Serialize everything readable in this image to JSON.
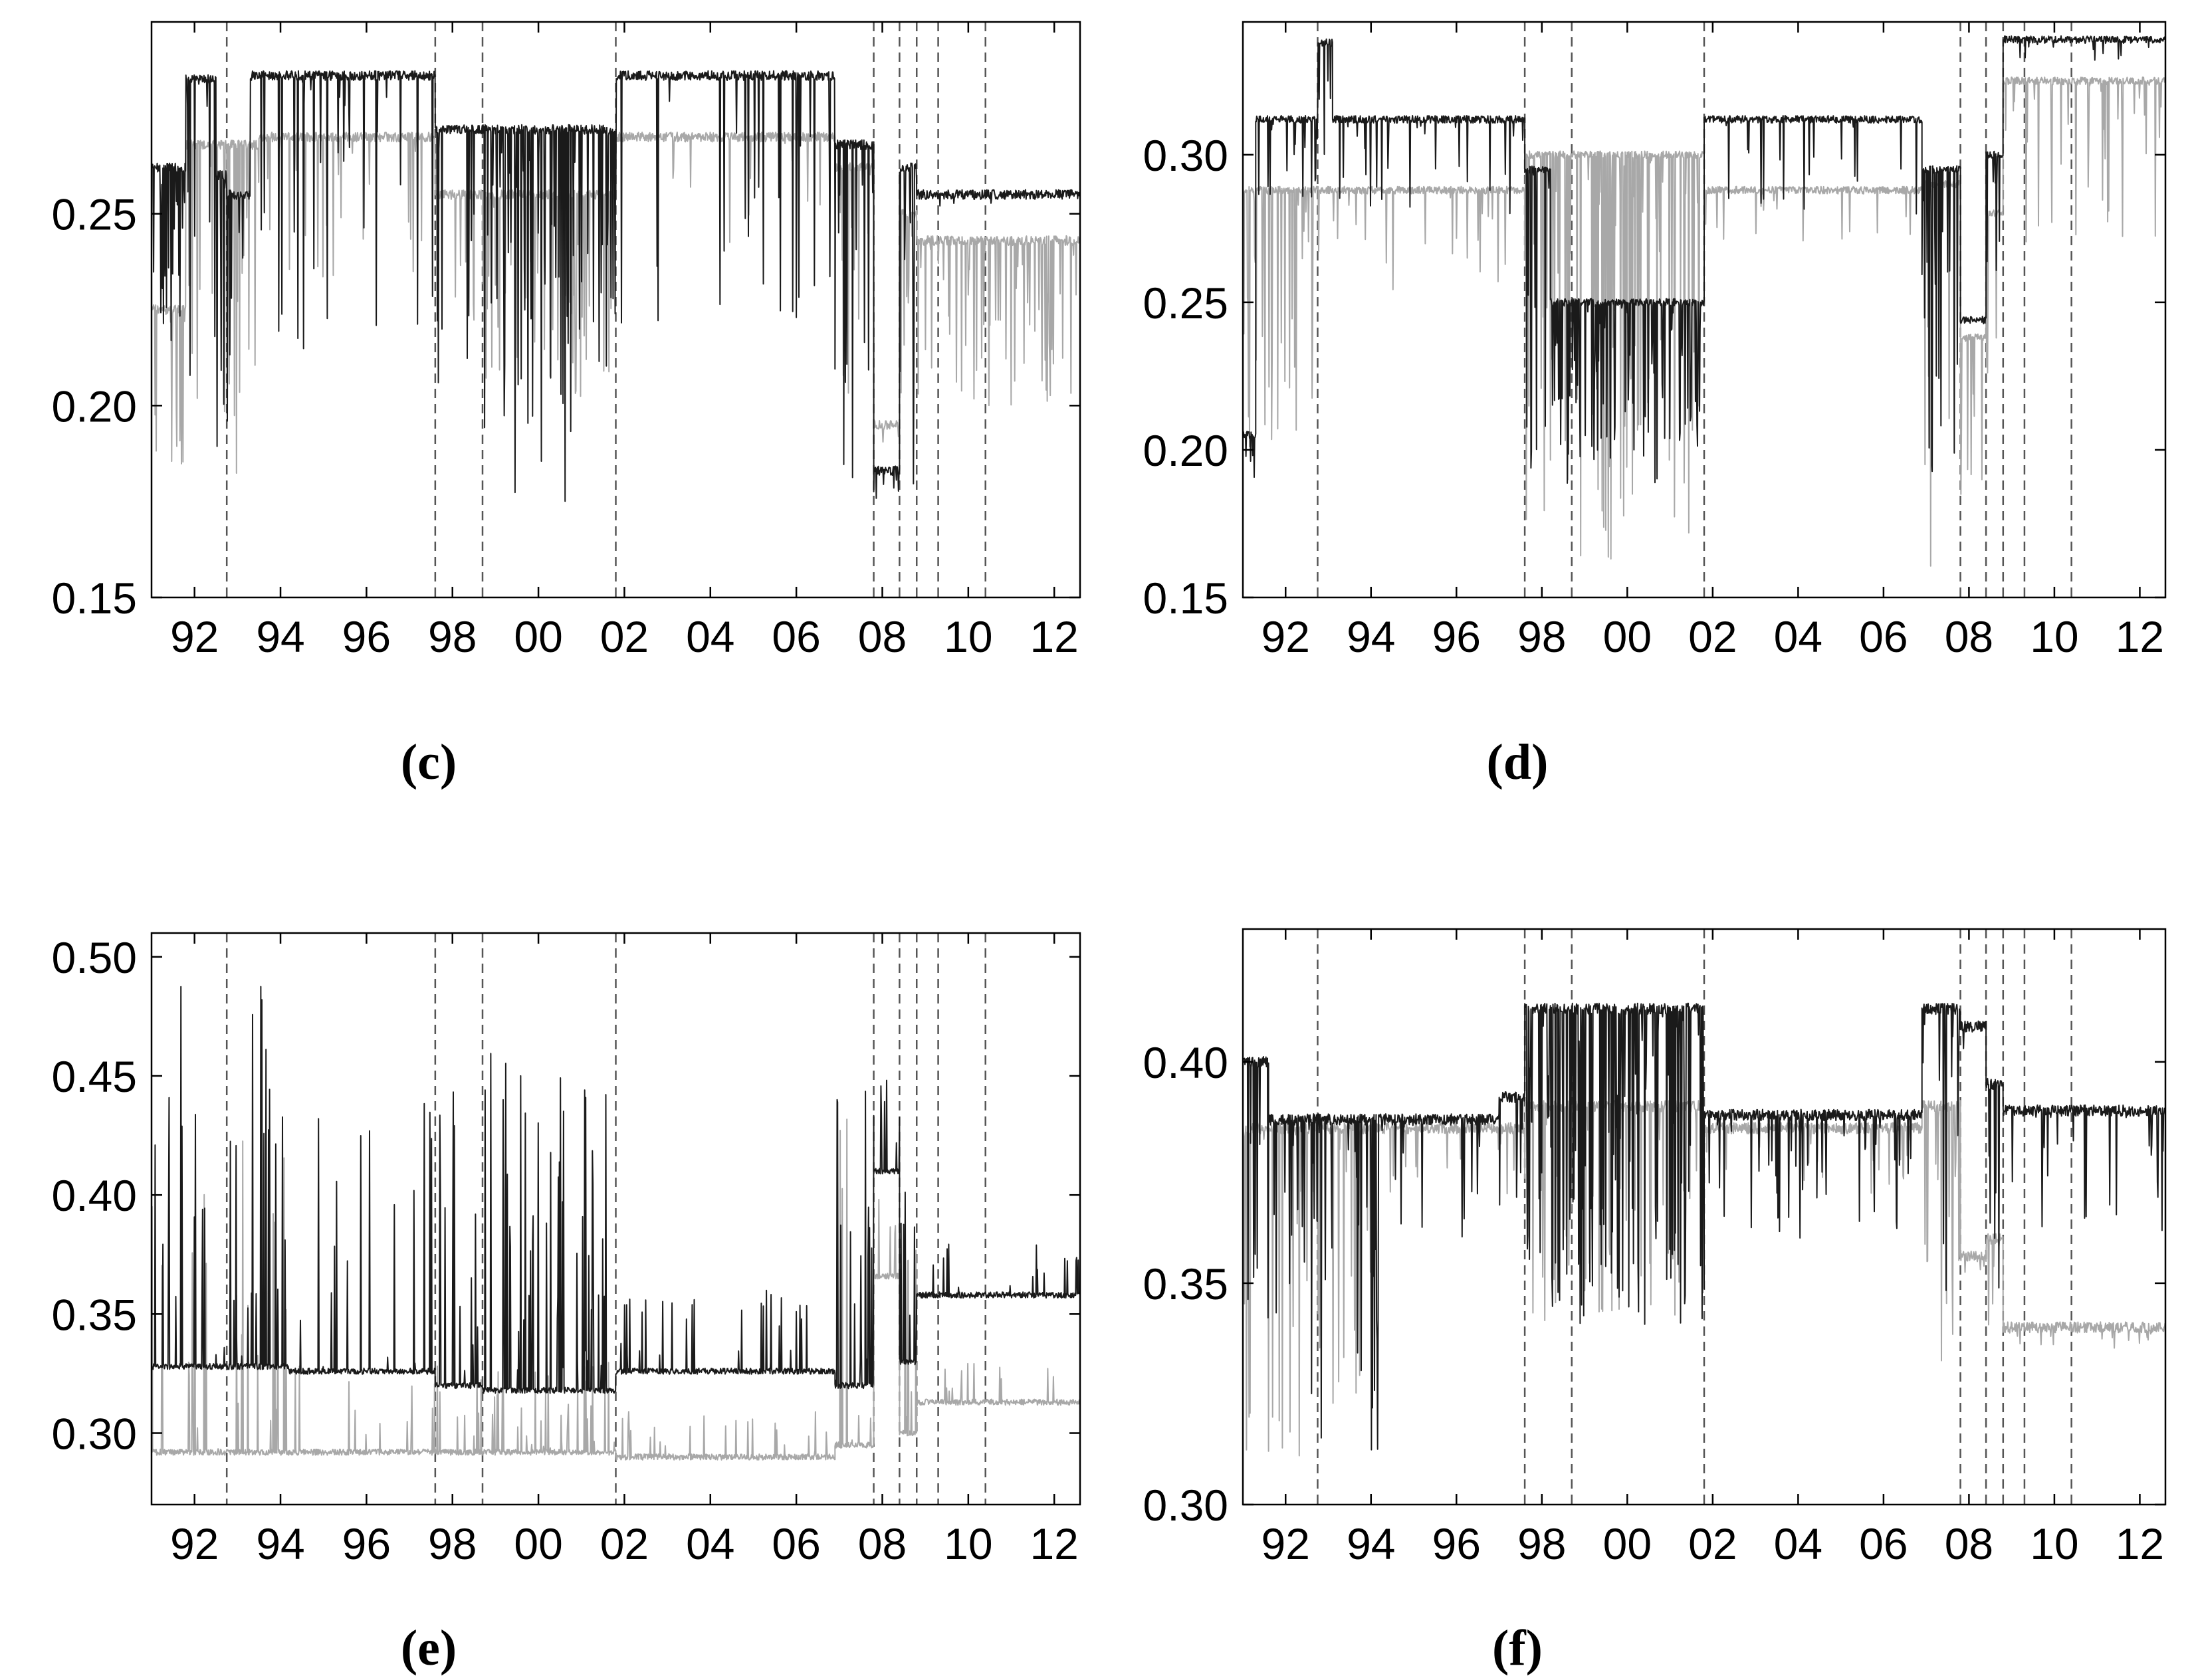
{
  "chart_data": [
    {
      "panel": "(c)",
      "type": "line",
      "xlim": [
        1991.0,
        2012.6
      ],
      "ylim": [
        0.15,
        0.3
      ],
      "y_ticks": [
        0.15,
        0.2,
        0.25
      ],
      "y_tick_labels": [
        "0.15",
        "0.20",
        "0.25"
      ],
      "x_ticks": [
        1992,
        1994,
        1996,
        1998,
        2000,
        2002,
        2004,
        2006,
        2008,
        2010,
        2012
      ],
      "x_tick_labels": [
        "92",
        "94",
        "96",
        "98",
        "00",
        "02",
        "04",
        "06",
        "08",
        "10",
        "12"
      ],
      "break_dates": [
        1992.75,
        1997.6,
        1998.7,
        2001.8,
        2007.8,
        2008.4,
        2008.8,
        2009.3,
        2010.4
      ],
      "series": [
        {
          "color": "#1a1a1a",
          "segments": [
            {
              "start": 1991.0,
              "end": 1991.8,
              "level": 0.262,
              "dip": 0.21,
              "vol": 0.8
            },
            {
              "start": 1991.8,
              "end": 1992.5,
              "level": 0.285,
              "dip": 0.19,
              "vol": 0.5
            },
            {
              "start": 1992.5,
              "end": 1992.75,
              "level": 0.26,
              "dip": 0.185,
              "vol": 0.6
            },
            {
              "start": 1992.75,
              "end": 1993.3,
              "level": 0.255,
              "dip": 0.19,
              "vol": 0.6
            },
            {
              "start": 1993.3,
              "end": 1997.6,
              "level": 0.286,
              "dip": 0.21,
              "vol": 0.25
            },
            {
              "start": 1997.6,
              "end": 1998.7,
              "level": 0.272,
              "dip": 0.2,
              "vol": 0.45
            },
            {
              "start": 1998.7,
              "end": 2000.8,
              "level": 0.272,
              "dip": 0.175,
              "vol": 0.75
            },
            {
              "start": 2000.8,
              "end": 2001.8,
              "level": 0.272,
              "dip": 0.21,
              "vol": 0.35
            },
            {
              "start": 2001.8,
              "end": 2006.9,
              "level": 0.286,
              "dip": 0.22,
              "vol": 0.2
            },
            {
              "start": 2006.9,
              "end": 2007.8,
              "level": 0.268,
              "dip": 0.175,
              "vol": 0.6
            },
            {
              "start": 2007.8,
              "end": 2008.4,
              "level": 0.183,
              "dip": 0.175,
              "vol": 0.3
            },
            {
              "start": 2008.4,
              "end": 2008.8,
              "level": 0.262,
              "dip": 0.16,
              "vol": 0.7
            },
            {
              "start": 2008.8,
              "end": 2012.6,
              "level": 0.255,
              "dip": 0.252,
              "vol": 0.05
            }
          ]
        },
        {
          "color": "#a8a8a8",
          "segments": [
            {
              "start": 1991.0,
              "end": 1991.8,
              "level": 0.225,
              "dip": 0.18,
              "vol": 0.5
            },
            {
              "start": 1991.8,
              "end": 1993.5,
              "level": 0.268,
              "dip": 0.18,
              "vol": 0.4
            },
            {
              "start": 1993.5,
              "end": 1997.6,
              "level": 0.27,
              "dip": 0.23,
              "vol": 0.15
            },
            {
              "start": 1997.6,
              "end": 1998.7,
              "level": 0.255,
              "dip": 0.21,
              "vol": 0.3
            },
            {
              "start": 1998.7,
              "end": 2001.8,
              "level": 0.255,
              "dip": 0.2,
              "vol": 0.4
            },
            {
              "start": 2001.8,
              "end": 2006.9,
              "level": 0.27,
              "dip": 0.24,
              "vol": 0.12
            },
            {
              "start": 2006.9,
              "end": 2007.8,
              "level": 0.262,
              "dip": 0.2,
              "vol": 0.4
            },
            {
              "start": 2007.8,
              "end": 2008.4,
              "level": 0.195,
              "dip": 0.185,
              "vol": 0.3
            },
            {
              "start": 2008.4,
              "end": 2008.8,
              "level": 0.25,
              "dip": 0.2,
              "vol": 0.5
            },
            {
              "start": 2008.8,
              "end": 2012.6,
              "level": 0.243,
              "dip": 0.2,
              "vol": 0.5
            }
          ]
        }
      ]
    },
    {
      "panel": "(d)",
      "type": "line",
      "xlim": [
        1991.0,
        2012.6
      ],
      "ylim": [
        0.15,
        0.345
      ],
      "y_ticks": [
        0.15,
        0.2,
        0.25,
        0.3
      ],
      "y_tick_labels": [
        "0.15",
        "0.20",
        "0.25",
        "0.30"
      ],
      "x_ticks": [
        1992,
        1994,
        1996,
        1998,
        2000,
        2002,
        2004,
        2006,
        2008,
        2010,
        2012
      ],
      "x_tick_labels": [
        "92",
        "94",
        "96",
        "98",
        "00",
        "02",
        "04",
        "06",
        "08",
        "10",
        "12"
      ],
      "break_dates": [
        1992.75,
        1997.6,
        1998.7,
        2001.8,
        2007.8,
        2008.4,
        2008.8,
        2009.3,
        2010.4
      ],
      "series": [
        {
          "color": "#1a1a1a",
          "segments": [
            {
              "start": 1991.0,
              "end": 1991.3,
              "level": 0.205,
              "dip": 0.19,
              "vol": 0.5
            },
            {
              "start": 1991.3,
              "end": 1992.75,
              "level": 0.312,
              "dip": 0.285,
              "vol": 0.35
            },
            {
              "start": 1992.75,
              "end": 1993.1,
              "level": 0.338,
              "dip": 0.3,
              "vol": 0.4
            },
            {
              "start": 1993.1,
              "end": 1997.6,
              "level": 0.312,
              "dip": 0.28,
              "vol": 0.2
            },
            {
              "start": 1997.6,
              "end": 1998.2,
              "level": 0.295,
              "dip": 0.19,
              "vol": 0.6
            },
            {
              "start": 1998.2,
              "end": 2001.8,
              "level": 0.25,
              "dip": 0.187,
              "vol": 0.8
            },
            {
              "start": 2001.8,
              "end": 2006.9,
              "level": 0.312,
              "dip": 0.28,
              "vol": 0.15
            },
            {
              "start": 2006.9,
              "end": 2007.8,
              "level": 0.295,
              "dip": 0.19,
              "vol": 0.7
            },
            {
              "start": 2007.8,
              "end": 2008.4,
              "level": 0.244,
              "dip": 0.24,
              "vol": 0.1
            },
            {
              "start": 2008.4,
              "end": 2008.8,
              "level": 0.3,
              "dip": 0.25,
              "vol": 0.5
            },
            {
              "start": 2008.8,
              "end": 2012.6,
              "level": 0.339,
              "dip": 0.33,
              "vol": 0.15
            }
          ]
        },
        {
          "color": "#a8a8a8",
          "segments": [
            {
              "start": 1991.0,
              "end": 1992.75,
              "level": 0.288,
              "dip": 0.2,
              "vol": 0.45
            },
            {
              "start": 1992.75,
              "end": 1997.6,
              "level": 0.288,
              "dip": 0.25,
              "vol": 0.2
            },
            {
              "start": 1997.6,
              "end": 2001.8,
              "level": 0.3,
              "dip": 0.16,
              "vol": 0.7
            },
            {
              "start": 2001.8,
              "end": 2006.9,
              "level": 0.288,
              "dip": 0.27,
              "vol": 0.1
            },
            {
              "start": 2006.9,
              "end": 2007.8,
              "level": 0.29,
              "dip": 0.16,
              "vol": 0.6
            },
            {
              "start": 2007.8,
              "end": 2008.4,
              "level": 0.238,
              "dip": 0.18,
              "vol": 0.4
            },
            {
              "start": 2008.4,
              "end": 2008.8,
              "level": 0.28,
              "dip": 0.22,
              "vol": 0.4
            },
            {
              "start": 2008.8,
              "end": 2012.6,
              "level": 0.325,
              "dip": 0.27,
              "vol": 0.3
            }
          ]
        }
      ]
    },
    {
      "panel": "(e)",
      "type": "line",
      "xlim": [
        1991.0,
        2012.6
      ],
      "ylim": [
        0.27,
        0.51
      ],
      "y_ticks": [
        0.3,
        0.35,
        0.4,
        0.45,
        0.5
      ],
      "y_tick_labels": [
        "0.30",
        "0.35",
        "0.40",
        "0.45",
        "0.50"
      ],
      "x_ticks": [
        1992,
        1994,
        1996,
        1998,
        2000,
        2002,
        2004,
        2006,
        2008,
        2010,
        2012
      ],
      "x_tick_labels": [
        "92",
        "94",
        "96",
        "98",
        "00",
        "02",
        "04",
        "06",
        "08",
        "10",
        "12"
      ],
      "break_dates": [
        1992.75,
        1997.6,
        1998.7,
        2001.8,
        2007.8,
        2008.4,
        2008.8,
        2009.3,
        2010.4
      ],
      "series": [
        {
          "color": "#1a1a1a",
          "segments": [
            {
              "start": 1991.0,
              "end": 1992.75,
              "level": 0.328,
              "peak": 0.49,
              "vol": 0.45
            },
            {
              "start": 1992.75,
              "end": 1994.2,
              "level": 0.328,
              "peak": 0.49,
              "vol": 0.55
            },
            {
              "start": 1994.2,
              "end": 1997.6,
              "level": 0.326,
              "peak": 0.44,
              "vol": 0.2
            },
            {
              "start": 1997.6,
              "end": 1998.7,
              "level": 0.32,
              "peak": 0.45,
              "vol": 0.45
            },
            {
              "start": 1998.7,
              "end": 2001.8,
              "level": 0.318,
              "peak": 0.46,
              "vol": 0.6
            },
            {
              "start": 2001.8,
              "end": 2006.9,
              "level": 0.326,
              "peak": 0.36,
              "vol": 0.25
            },
            {
              "start": 2006.9,
              "end": 2007.8,
              "level": 0.32,
              "peak": 0.46,
              "vol": 0.6
            },
            {
              "start": 2007.8,
              "end": 2008.4,
              "level": 0.41,
              "peak": 0.45,
              "vol": 0.2
            },
            {
              "start": 2008.4,
              "end": 2008.8,
              "level": 0.33,
              "peak": 0.45,
              "vol": 0.5
            },
            {
              "start": 2008.8,
              "end": 2012.6,
              "level": 0.358,
              "peak": 0.38,
              "vol": 0.12
            }
          ]
        },
        {
          "color": "#a8a8a8",
          "segments": [
            {
              "start": 1991.0,
              "end": 1992.75,
              "level": 0.292,
              "peak": 0.42,
              "vol": 0.3
            },
            {
              "start": 1992.75,
              "end": 1994.2,
              "level": 0.292,
              "peak": 0.45,
              "vol": 0.35
            },
            {
              "start": 1994.2,
              "end": 1997.6,
              "level": 0.292,
              "peak": 0.33,
              "vol": 0.15
            },
            {
              "start": 1997.6,
              "end": 2001.8,
              "level": 0.292,
              "peak": 0.33,
              "vol": 0.3
            },
            {
              "start": 2001.8,
              "end": 2006.9,
              "level": 0.29,
              "peak": 0.31,
              "vol": 0.25
            },
            {
              "start": 2006.9,
              "end": 2007.8,
              "level": 0.295,
              "peak": 0.45,
              "vol": 0.4
            },
            {
              "start": 2007.8,
              "end": 2008.4,
              "level": 0.366,
              "peak": 0.4,
              "vol": 0.2
            },
            {
              "start": 2008.4,
              "end": 2008.8,
              "level": 0.3,
              "peak": 0.4,
              "vol": 0.4
            },
            {
              "start": 2008.8,
              "end": 2012.6,
              "level": 0.313,
              "peak": 0.33,
              "vol": 0.15
            }
          ]
        }
      ]
    },
    {
      "panel": "(f)",
      "type": "line",
      "xlim": [
        1991.0,
        2012.6
      ],
      "ylim": [
        0.3,
        0.43
      ],
      "y_ticks": [
        0.3,
        0.35,
        0.4
      ],
      "y_tick_labels": [
        "0.30",
        "0.35",
        "0.40"
      ],
      "x_ticks": [
        1992,
        1994,
        1996,
        1998,
        2000,
        2002,
        2004,
        2006,
        2008,
        2010,
        2012
      ],
      "x_tick_labels": [
        "92",
        "94",
        "96",
        "98",
        "00",
        "02",
        "04",
        "06",
        "08",
        "10",
        "12"
      ],
      "break_dates": [
        1992.75,
        1997.6,
        1998.7,
        2001.8,
        2007.8,
        2008.4,
        2008.8,
        2009.3,
        2010.4
      ],
      "series": [
        {
          "color": "#1a1a1a",
          "segments": [
            {
              "start": 1991.0,
              "end": 1991.6,
              "level": 0.4,
              "dip": 0.32,
              "vol": 0.6
            },
            {
              "start": 1991.6,
              "end": 1992.75,
              "level": 0.387,
              "dip": 0.32,
              "vol": 0.4
            },
            {
              "start": 1992.75,
              "end": 1994.2,
              "level": 0.387,
              "dip": 0.31,
              "vol": 0.55
            },
            {
              "start": 1994.2,
              "end": 1997.0,
              "level": 0.387,
              "dip": 0.36,
              "vol": 0.2
            },
            {
              "start": 1997.0,
              "end": 1997.6,
              "level": 0.392,
              "dip": 0.36,
              "vol": 0.4
            },
            {
              "start": 1997.6,
              "end": 2001.8,
              "level": 0.412,
              "dip": 0.34,
              "vol": 0.8
            },
            {
              "start": 2001.8,
              "end": 2006.9,
              "level": 0.388,
              "dip": 0.36,
              "vol": 0.2
            },
            {
              "start": 2006.9,
              "end": 2007.8,
              "level": 0.412,
              "dip": 0.34,
              "vol": 0.6
            },
            {
              "start": 2007.8,
              "end": 2008.4,
              "level": 0.408,
              "dip": 0.4,
              "vol": 0.1
            },
            {
              "start": 2008.4,
              "end": 2008.8,
              "level": 0.395,
              "dip": 0.34,
              "vol": 0.5
            },
            {
              "start": 2008.8,
              "end": 2012.6,
              "level": 0.389,
              "dip": 0.36,
              "vol": 0.25
            }
          ]
        },
        {
          "color": "#a8a8a8",
          "segments": [
            {
              "start": 1991.0,
              "end": 1992.75,
              "level": 0.385,
              "dip": 0.31,
              "vol": 0.4
            },
            {
              "start": 1992.75,
              "end": 1994.2,
              "level": 0.385,
              "dip": 0.31,
              "vol": 0.45
            },
            {
              "start": 1994.2,
              "end": 1997.6,
              "level": 0.385,
              "dip": 0.37,
              "vol": 0.15
            },
            {
              "start": 1997.6,
              "end": 2001.8,
              "level": 0.39,
              "dip": 0.34,
              "vol": 0.5
            },
            {
              "start": 2001.8,
              "end": 2006.9,
              "level": 0.385,
              "dip": 0.37,
              "vol": 0.15
            },
            {
              "start": 2006.9,
              "end": 2007.8,
              "level": 0.39,
              "dip": 0.33,
              "vol": 0.45
            },
            {
              "start": 2007.8,
              "end": 2008.4,
              "level": 0.356,
              "dip": 0.35,
              "vol": 0.1
            },
            {
              "start": 2008.4,
              "end": 2008.8,
              "level": 0.36,
              "dip": 0.34,
              "vol": 0.4
            },
            {
              "start": 2008.8,
              "end": 2012.6,
              "level": 0.34,
              "dip": 0.335,
              "vol": 0.15
            }
          ]
        }
      ]
    }
  ]
}
